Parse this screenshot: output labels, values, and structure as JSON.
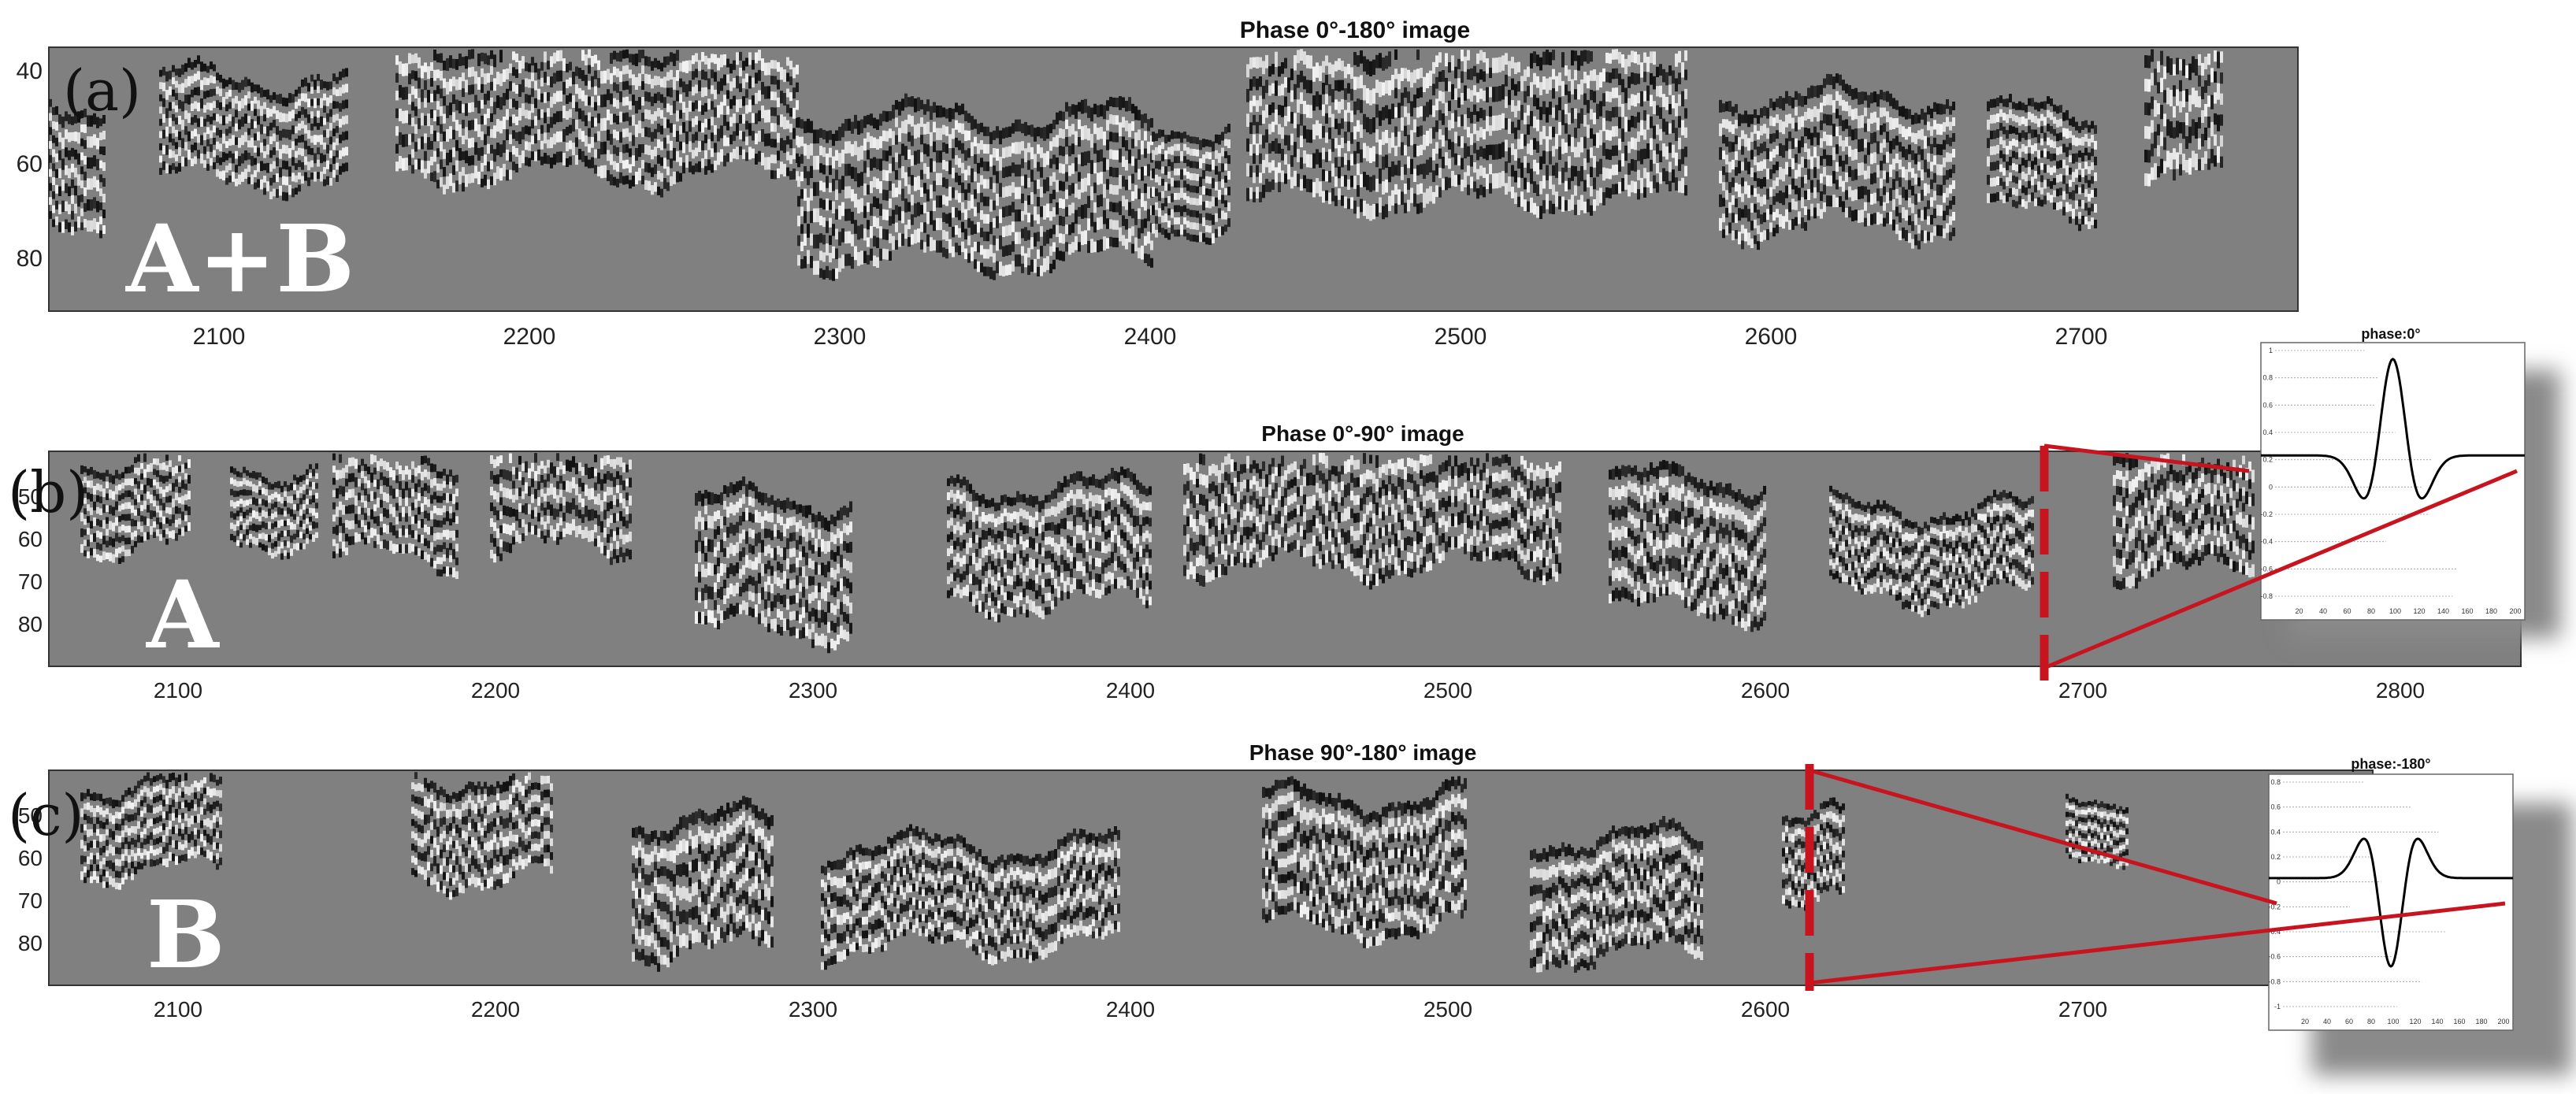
{
  "panels": [
    {
      "id": "a",
      "title": "Phase 0°-180° image",
      "panel_letter": "(a)",
      "overlay_label": "A+B",
      "x_ticks": [
        "2100",
        "2200",
        "2300",
        "2400",
        "2500",
        "2600",
        "2700"
      ],
      "y_ticks": [
        "40",
        "60",
        "80"
      ]
    },
    {
      "id": "b",
      "title": "Phase 0°-90° image",
      "panel_letter": "(b)",
      "overlay_label": "A",
      "x_ticks": [
        "2100",
        "2200",
        "2300",
        "2400",
        "2500",
        "2600",
        "2700",
        "2800"
      ],
      "y_ticks": [
        "50",
        "60",
        "70",
        "80"
      ],
      "marker_x": 2685
    },
    {
      "id": "c",
      "title": "Phase 90°-180° image",
      "panel_letter": "(c)",
      "overlay_label": "B",
      "x_ticks": [
        "2100",
        "2200",
        "2300",
        "2400",
        "2500",
        "2600",
        "2700"
      ],
      "y_ticks": [
        "50",
        "60",
        "70",
        "80"
      ],
      "marker_x": 2615
    }
  ],
  "insets": [
    {
      "id": "phase-0",
      "title": "phase:0°",
      "polarity": 1,
      "y_ticks": [
        "1",
        "0.8",
        "0.6",
        "0.4",
        "0.2",
        "0",
        "-0.2",
        "-0.4",
        "-0.6",
        "-0.8"
      ],
      "x_ticks": [
        "20",
        "40",
        "60",
        "80",
        "100",
        "120",
        "140",
        "160",
        "180",
        "200"
      ]
    },
    {
      "id": "phase-180",
      "title": "phase:-180°",
      "polarity": -1,
      "y_ticks": [
        "0.8",
        "0.6",
        "0.4",
        "0.2",
        "0",
        "-0.2",
        "-0.4",
        "-0.6",
        "-0.8",
        "-1"
      ],
      "x_ticks": [
        "20",
        "40",
        "60",
        "80",
        "100",
        "120",
        "140",
        "160",
        "180",
        "200"
      ]
    }
  ],
  "colors": {
    "background_gray": "#808080",
    "marker_red": "#c8141e",
    "inset_shadow": "#8a8a8a"
  }
}
